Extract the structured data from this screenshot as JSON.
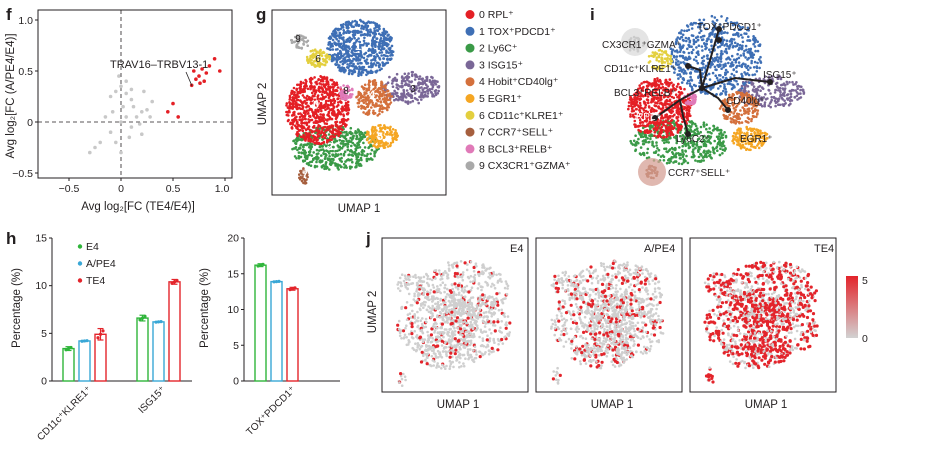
{
  "panel_labels": {
    "f": "f",
    "g": "g",
    "h": "h",
    "i": "i",
    "j": "j"
  },
  "panel_f": {
    "annotation": "TRAV16–TRBV13-1",
    "xlabel": "Avg log₂[FC (TE4/E4)]",
    "ylabel": "Avg log₂[FC (A/PE4/E4)]",
    "x_ticks": [
      "−0.5",
      "0",
      "0.5",
      "1.0"
    ],
    "y_ticks": [
      "1.0",
      "0.5",
      "0",
      "−0.5"
    ]
  },
  "panel_g": {
    "xlabel": "UMAP 1",
    "ylabel": "UMAP 2",
    "clusters": [
      {
        "id": "0",
        "label": "0 RPL⁺",
        "color": "#e41f25"
      },
      {
        "id": "1",
        "label": "1 TOX⁺PDCD1⁺",
        "color": "#3e6fb5"
      },
      {
        "id": "2",
        "label": "2 Ly6C⁺",
        "color": "#3a9a47"
      },
      {
        "id": "3",
        "label": "3 ISG15⁺",
        "color": "#7a6797"
      },
      {
        "id": "4",
        "label": "4 Hobit⁺CD40lg⁺",
        "color": "#d4703c"
      },
      {
        "id": "5",
        "label": "5 EGR1⁺",
        "color": "#f5a623"
      },
      {
        "id": "6",
        "label": "6 CD11c⁺KLRE1⁺",
        "color": "#e3cf3e"
      },
      {
        "id": "7",
        "label": "7 CCR7⁺SELL⁺",
        "color": "#a65f3e"
      },
      {
        "id": "8",
        "label": "8 BCL3⁺RELB⁺",
        "color": "#e07ab8"
      },
      {
        "id": "9",
        "label": "9 CX3CR1⁺GZMA⁺",
        "color": "#a9a9a9"
      }
    ]
  },
  "panel_i": {
    "labels": {
      "tox": "TOX⁺PDCD1⁺",
      "cx3": "CX3CR1⁺GZMA⁺",
      "cd11": "CD11c⁺KLRE1⁺",
      "isg": "ISG15⁺",
      "bcl": "BCL3⁺RELB⁺",
      "cd40": "CD40lg⁺",
      "rpl": "RPL⁺",
      "ly6": "Ly6C2⁺",
      "egr": "EGR1⁺",
      "ccr": "CCR7⁺SELL⁺"
    }
  },
  "chart_data": [
    {
      "type": "scatter",
      "panel": "f",
      "xlabel": "Avg log₂[FC (TE4/E4)]",
      "ylabel": "Avg log₂[FC (A/PE4/E4)]",
      "xlim": [
        -0.6,
        1.05
      ],
      "ylim": [
        -0.6,
        1.05
      ],
      "series": [
        {
          "color": "#c8c8c8",
          "points": [
            [
              -0.1,
              0.25
            ],
            [
              -0.05,
              0.3
            ],
            [
              0.0,
              0.35
            ],
            [
              0.05,
              0.28
            ],
            [
              0.1,
              0.22
            ],
            [
              0.02,
              0.15
            ],
            [
              -0.15,
              0.05
            ],
            [
              -0.2,
              -0.2
            ],
            [
              -0.1,
              -0.1
            ],
            [
              0.0,
              0.0
            ],
            [
              0.05,
              0.05
            ],
            [
              0.1,
              -0.05
            ],
            [
              0.15,
              0.05
            ],
            [
              0.2,
              0.1
            ],
            [
              0.08,
              -0.15
            ],
            [
              -0.05,
              -0.2
            ],
            [
              0.12,
              0.15
            ],
            [
              0.18,
              -0.02
            ],
            [
              0.25,
              0.12
            ],
            [
              0.3,
              0.2
            ],
            [
              -0.25,
              -0.25
            ],
            [
              -0.3,
              -0.3
            ],
            [
              0.2,
              -0.12
            ],
            [
              0.05,
              0.4
            ],
            [
              -0.02,
              0.45
            ],
            [
              0.22,
              0.3
            ],
            [
              0.28,
              0.05
            ],
            [
              0.1,
              0.32
            ],
            [
              -0.08,
              0.1
            ],
            [
              0.0,
              -0.3
            ]
          ]
        },
        {
          "color": "#e41f25",
          "points": [
            [
              0.7,
              0.5
            ],
            [
              0.75,
              0.45
            ],
            [
              0.78,
              0.52
            ],
            [
              0.8,
              0.4
            ],
            [
              0.82,
              0.48
            ],
            [
              0.72,
              0.42
            ],
            [
              0.85,
              0.55
            ],
            [
              0.76,
              0.38
            ],
            [
              0.9,
              0.62
            ],
            [
              0.68,
              0.36
            ],
            [
              0.5,
              0.18
            ],
            [
              0.55,
              0.05
            ],
            [
              0.95,
              0.5
            ],
            [
              0.45,
              0.1
            ]
          ]
        }
      ]
    },
    {
      "type": "bar",
      "panel": "h-left",
      "categories": [
        "CD11c⁺KLRE1⁺",
        "ISG15⁺"
      ],
      "series": [
        {
          "name": "E4",
          "values": [
            3.4,
            6.6
          ],
          "err": [
            0.2,
            0.3
          ],
          "color": "#2fb53a"
        },
        {
          "name": "A/PE4",
          "values": [
            4.2,
            6.2
          ],
          "err": [
            0.05,
            0.05
          ],
          "color": "#39a7d6"
        },
        {
          "name": "TE4",
          "values": [
            4.9,
            10.4
          ],
          "err": [
            0.6,
            0.25
          ],
          "color": "#e3242b"
        }
      ],
      "ylabel": "Percentage (%)",
      "ylim": [
        0,
        15
      ],
      "yticks": [
        "0",
        "5",
        "10",
        "15"
      ]
    },
    {
      "type": "bar",
      "panel": "h-right",
      "categories": [
        "TOX⁺PDCD1⁺"
      ],
      "series": [
        {
          "name": "E4",
          "values": [
            16.2
          ],
          "err": [
            0.2
          ],
          "color": "#2fb53a"
        },
        {
          "name": "A/PE4",
          "values": [
            13.9
          ],
          "err": [
            0.05
          ],
          "color": "#39a7d6"
        },
        {
          "name": "TE4",
          "values": [
            12.9
          ],
          "err": [
            0.2
          ],
          "color": "#e3242b"
        }
      ],
      "ylabel": "Percentage (%)",
      "ylim": [
        0,
        20
      ],
      "yticks": [
        "0",
        "5",
        "10",
        "15",
        "20"
      ]
    }
  ],
  "panel_j": {
    "xlabel": "UMAP 1",
    "ylabel": "UMAP 2",
    "subpanels": [
      {
        "title": "E4",
        "density": 0.12
      },
      {
        "title": "A/PE4",
        "density": 0.2
      },
      {
        "title": "TE4",
        "density": 0.55
      }
    ],
    "colorbar": {
      "max_label": "5",
      "min_label": "0"
    }
  }
}
